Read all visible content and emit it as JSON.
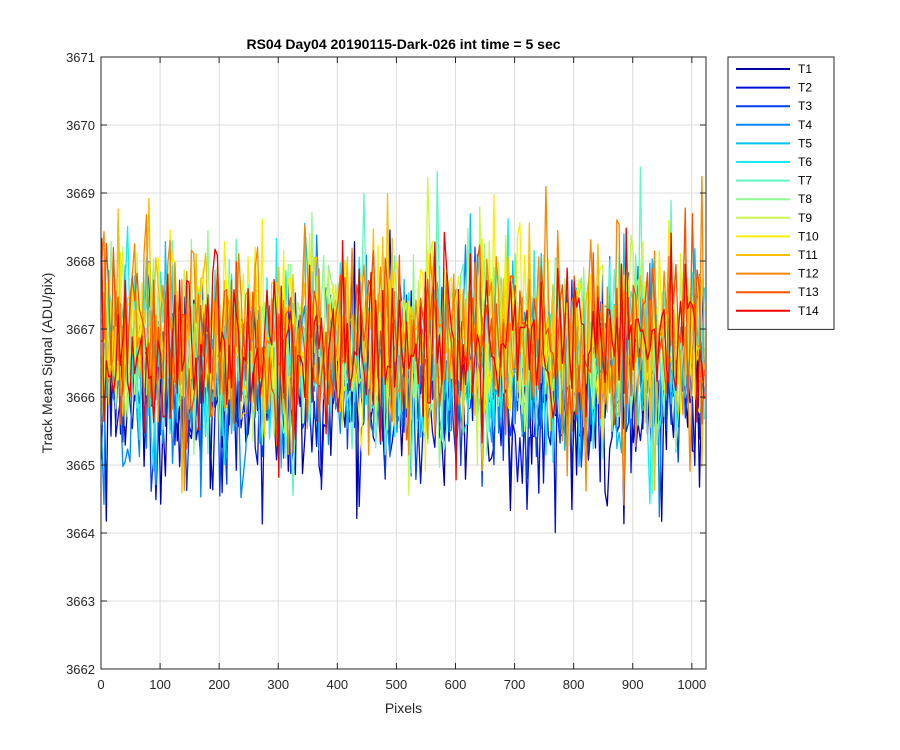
{
  "chart_data": {
    "type": "line",
    "title": "RS04 Day04 20190115-Dark-026 int time = 5 sec",
    "xlabel": "Pixels",
    "ylabel": "Track Mean Signal (ADU/pix)",
    "xlim": [
      0,
      1024
    ],
    "ylim": [
      3662,
      3671
    ],
    "xticks": [
      0,
      100,
      200,
      300,
      400,
      500,
      600,
      700,
      800,
      900,
      1000
    ],
    "yticks": [
      3662,
      3663,
      3664,
      3665,
      3666,
      3667,
      3668,
      3669,
      3670,
      3671
    ],
    "grid": true,
    "legend_position": "outside-top-right",
    "x": {
      "start": 1,
      "end": 1024,
      "step": 4
    },
    "series": [
      {
        "name": "T1",
        "color": "#0000a8",
        "center": 3666.05,
        "spread": 0.95
      },
      {
        "name": "T2",
        "color": "#0010d8",
        "center": 3666.1,
        "spread": 0.95
      },
      {
        "name": "T3",
        "color": "#0040f0",
        "center": 3666.2,
        "spread": 0.95
      },
      {
        "name": "T4",
        "color": "#0088f8",
        "center": 3666.4,
        "spread": 0.95
      },
      {
        "name": "T5",
        "color": "#00c0f8",
        "center": 3666.5,
        "spread": 0.95
      },
      {
        "name": "T6",
        "color": "#10f0f0",
        "center": 3666.6,
        "spread": 0.95
      },
      {
        "name": "T7",
        "color": "#60f8c0",
        "center": 3666.7,
        "spread": 0.95
      },
      {
        "name": "T8",
        "color": "#90f890",
        "center": 3666.8,
        "spread": 0.95
      },
      {
        "name": "T9",
        "color": "#c8f848",
        "center": 3666.9,
        "spread": 0.95
      },
      {
        "name": "T10",
        "color": "#f8f000",
        "center": 3667.0,
        "spread": 0.95
      },
      {
        "name": "T11",
        "color": "#f8c000",
        "center": 3666.95,
        "spread": 0.95
      },
      {
        "name": "T12",
        "color": "#f88800",
        "center": 3666.9,
        "spread": 0.95
      },
      {
        "name": "T13",
        "color": "#f85000",
        "center": 3666.85,
        "spread": 0.9
      },
      {
        "name": "T14",
        "color": "#f00000",
        "center": 3666.8,
        "spread": 0.85
      }
    ]
  }
}
